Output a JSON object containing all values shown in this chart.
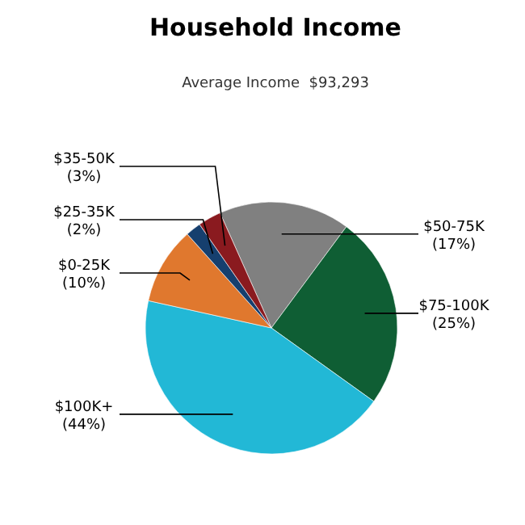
{
  "chart_data": {
    "type": "pie",
    "title": "Household Income",
    "subtitle": "Average Income  $93,293",
    "categories": [
      "$50-75K",
      "$75-100K",
      "$100K+",
      "$0-25K",
      "$25-35K",
      "$35-50K"
    ],
    "values": [
      17,
      25,
      44,
      10,
      2,
      3
    ],
    "colors": [
      "#808080",
      "#0f5e34",
      "#22b8d6",
      "#e0782e",
      "#163f6e",
      "#8a1a1f"
    ],
    "value_labels": [
      "(17%)",
      "(25%)",
      "(44%)",
      "(10%)",
      "(2%)",
      "(3%)"
    ],
    "legend": false
  }
}
